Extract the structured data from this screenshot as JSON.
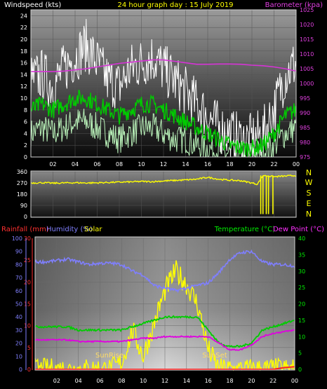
{
  "header": {
    "windspeed_label": "Windspeed (kts)",
    "title": "24 hour graph day : 15 July 2019",
    "barometer_label": "Barometer (kpa)"
  },
  "bottom_labels": {
    "rainfall": "Rainfall (mm)",
    "humidity": "Humidity (%)",
    "solar": "Solar",
    "temperature": "Temperature (°C)",
    "dew_point": "Dew Point (°C)",
    "sunrise": "SunRise",
    "sunset": "SunSet"
  },
  "compass": [
    "N",
    "W",
    "S",
    "E",
    "N"
  ],
  "colors": {
    "wind_gust": "#ffffff",
    "wind_avg": "#00cc00",
    "wind_low": "#b8f0b8",
    "barometer": "#d633d6",
    "direction": "#ffff00",
    "rainfall": "#ff2020",
    "humidity": "#7f7fff",
    "solar": "#ffff00",
    "temperature": "#00cc00",
    "dew_point": "#e000e0",
    "sun_marker": "#ffdd66"
  },
  "chart_data": [
    {
      "type": "line",
      "name": "wind-barometer",
      "x_ticks": [
        "02",
        "04",
        "06",
        "08",
        "10",
        "12",
        "14",
        "16",
        "18",
        "20",
        "22",
        "00"
      ],
      "y_left_ticks": [
        "0",
        "2",
        "4",
        "6",
        "8",
        "10",
        "12",
        "14",
        "16",
        "18",
        "20",
        "22",
        "24"
      ],
      "y_right_ticks": [
        "975",
        "980",
        "985",
        "990",
        "995",
        "1000",
        "1005",
        "1010",
        "1015",
        "1020",
        "1025"
      ],
      "ylim_left": [
        0,
        25
      ],
      "ylim_right": [
        975,
        1025
      ],
      "x": [
        0,
        1,
        2,
        3,
        4,
        5,
        6,
        7,
        8,
        9,
        10,
        11,
        12,
        13,
        14,
        15,
        16,
        17,
        18,
        19,
        20,
        21,
        22,
        23,
        24
      ],
      "series": [
        {
          "name": "Windspeed",
          "values": [
            13,
            14,
            12,
            15,
            17,
            19,
            16,
            13,
            12,
            15,
            16,
            17,
            15,
            13,
            11,
            9,
            7,
            5,
            4,
            3,
            3,
            4,
            8,
            14,
            16
          ]
        },
        {
          "name": "",
          "values": [
            8,
            9,
            8,
            9,
            10,
            10,
            9,
            8,
            7,
            8,
            9,
            9,
            8,
            7,
            6,
            5,
            4,
            3,
            2,
            1.5,
            1.5,
            2,
            4,
            7,
            8
          ]
        },
        {
          "name": "",
          "values": [
            4,
            5,
            4,
            5,
            6,
            6,
            5,
            4,
            3,
            4,
            5,
            5,
            4,
            3,
            3,
            2,
            1.5,
            1,
            0.5,
            0.5,
            0.5,
            1,
            2,
            4,
            5
          ]
        },
        {
          "name": "Barometer",
          "values": [
            1004,
            1004,
            1004,
            1004.2,
            1004.6,
            1005,
            1005.6,
            1006.2,
            1006.8,
            1007.2,
            1007.6,
            1008,
            1008,
            1007.5,
            1007,
            1006.5,
            1006.5,
            1006.6,
            1006.6,
            1006.5,
            1006.2,
            1006,
            1005.6,
            1005,
            1004.2
          ]
        }
      ]
    },
    {
      "type": "line",
      "name": "wind-direction",
      "y_ticks": [
        "0",
        "90",
        "180",
        "270",
        "360"
      ],
      "ylim": [
        0,
        360
      ],
      "x": [
        0,
        1,
        2,
        3,
        4,
        5,
        6,
        7,
        8,
        9,
        10,
        11,
        12,
        13,
        14,
        15,
        16,
        17,
        18,
        19,
        20,
        20.5,
        21,
        22,
        23,
        24
      ],
      "series": [
        {
          "name": "",
          "values": [
            270,
            272,
            268,
            270,
            272,
            270,
            271,
            274,
            276,
            278,
            282,
            280,
            286,
            290,
            294,
            300,
            315,
            300,
            292,
            288,
            270,
            260,
            330,
            320,
            325,
            330
          ]
        }
      ]
    },
    {
      "type": "line",
      "name": "weather",
      "x_ticks": [
        "02",
        "04",
        "06",
        "08",
        "10",
        "12",
        "14",
        "16",
        "18",
        "20",
        "22",
        "00"
      ],
      "y_humidity_ticks": [
        "0",
        "10",
        "20",
        "30",
        "40",
        "50",
        "60",
        "70",
        "80",
        "90",
        "100"
      ],
      "y_rain_ticks": [
        "0",
        "5",
        "10",
        "15",
        "20",
        "25",
        "30"
      ],
      "y_temp_ticks": [
        "0",
        "5",
        "10",
        "15",
        "20",
        "25",
        "30",
        "35",
        "40"
      ],
      "ylim_humidity": [
        0,
        100
      ],
      "ylim_rain": [
        0,
        30
      ],
      "ylim_temp": [
        0,
        40
      ],
      "x": [
        0,
        1,
        2,
        3,
        4,
        5,
        6,
        7,
        8,
        9,
        10,
        11,
        12,
        13,
        14,
        15,
        16,
        17,
        18,
        19,
        20,
        21,
        22,
        23,
        24
      ],
      "series": [
        {
          "name": "Humidity",
          "values": [
            82,
            82,
            83,
            84,
            82,
            80,
            81,
            81,
            80,
            75,
            72,
            64,
            62,
            60,
            62,
            64,
            66,
            74,
            84,
            89,
            90,
            82,
            80,
            80,
            79
          ]
        },
        {
          "name": "Temperature",
          "values": [
            13,
            13,
            13,
            13,
            12,
            12,
            12,
            12,
            12,
            13,
            14,
            15,
            16,
            16,
            16,
            16,
            12,
            8,
            7,
            7,
            8,
            12,
            13,
            14,
            15
          ]
        },
        {
          "name": "Dew Point",
          "values": [
            9,
            9,
            9,
            9,
            8.5,
            8.5,
            8.5,
            8.5,
            8.5,
            9,
            9.5,
            9.5,
            10,
            10,
            10,
            10,
            10,
            8,
            6,
            6,
            7.5,
            10,
            11,
            11.5,
            12
          ]
        },
        {
          "name": "Solar",
          "values": [
            0,
            0,
            0,
            0,
            0,
            0,
            0,
            0,
            2,
            12,
            4,
            14,
            24,
            30,
            26,
            20,
            6,
            0,
            0,
            0,
            0,
            0,
            0,
            0,
            0
          ]
        },
        {
          "name": "Rainfall",
          "values": [
            0,
            0,
            0,
            0,
            0,
            0,
            0,
            0,
            0,
            0,
            0,
            0,
            0,
            0,
            0,
            0,
            0,
            0,
            0,
            0,
            0,
            0,
            0,
            0.4,
            0.6
          ]
        }
      ]
    }
  ]
}
